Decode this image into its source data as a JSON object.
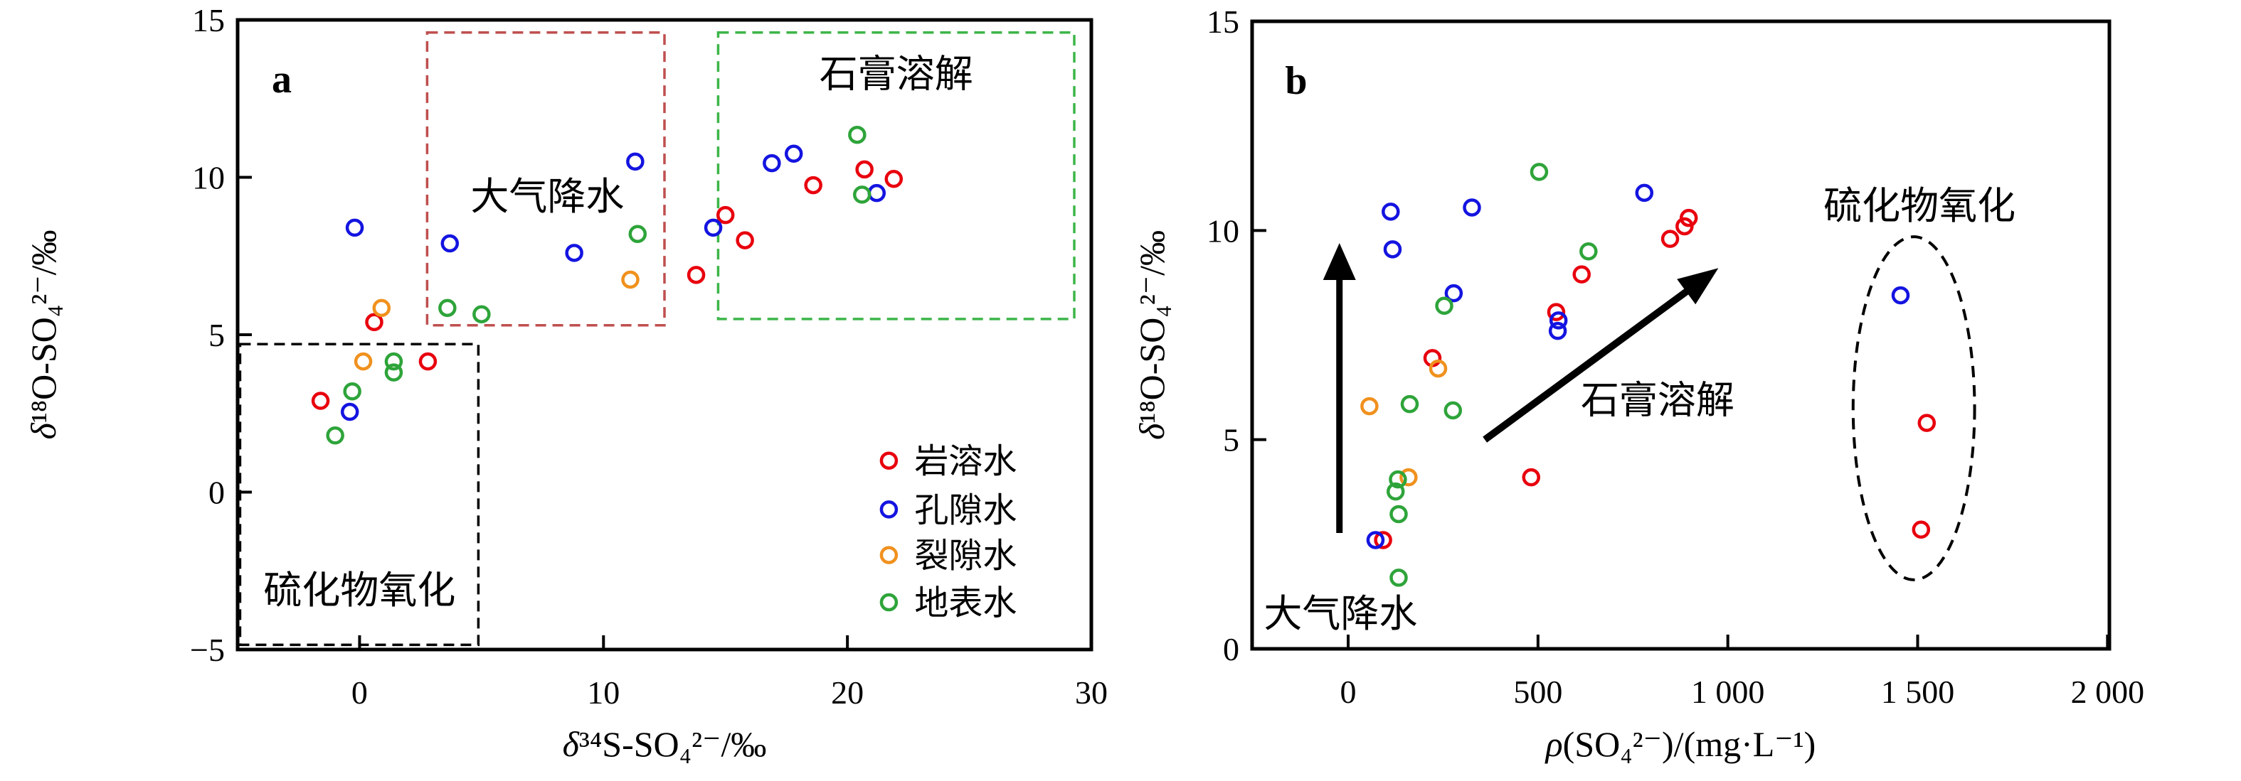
{
  "figure": {
    "background": "#ffffff"
  },
  "colors": {
    "karst_red": "#e8000d",
    "pore_blue": "#1414e0",
    "fissure_orange": "#f0911e",
    "surface_green": "#2ea43a",
    "precipitation_box": "#bf4f4f",
    "gypsum_box": "#3db549",
    "sulfide_box": "#000000"
  },
  "chart_data": [
    {
      "id": "a",
      "type": "scatter",
      "panel_label": "a",
      "xlabel": "δ³⁴S-SO₄²⁻/‰",
      "ylabel": "δ¹⁸O-SO₄²⁻/‰",
      "xlim": [
        -5,
        30
      ],
      "ylim": [
        -5,
        15
      ],
      "xticks": [
        "0",
        "10",
        "20",
        "30"
      ],
      "xtick_values": [
        0,
        10,
        20,
        30
      ],
      "yticks": [
        "−5",
        "0",
        "5",
        "10",
        "15"
      ],
      "ytick_values": [
        -5,
        0,
        5,
        10,
        15
      ],
      "grid": false,
      "legend_position": "inside-bottom-right",
      "series": [
        {
          "name": "岩溶水",
          "color": "#e8000d",
          "points": [
            [
              -1.6,
              2.9
            ],
            [
              0.6,
              5.4
            ],
            [
              2.8,
              4.15
            ],
            [
              13.8,
              6.9
            ],
            [
              15.0,
              8.8
            ],
            [
              15.8,
              8.0
            ],
            [
              18.6,
              9.75
            ],
            [
              20.7,
              10.25
            ],
            [
              21.9,
              9.95
            ]
          ]
        },
        {
          "name": "孔隙水",
          "color": "#1414e0",
          "points": [
            [
              -0.4,
              2.55
            ],
            [
              -0.2,
              8.4
            ],
            [
              3.7,
              7.9
            ],
            [
              8.8,
              7.6
            ],
            [
              11.3,
              10.5
            ],
            [
              14.5,
              8.4
            ],
            [
              16.9,
              10.45
            ],
            [
              17.8,
              10.75
            ],
            [
              21.2,
              9.5
            ]
          ]
        },
        {
          "name": "裂隙水",
          "color": "#f0911e",
          "points": [
            [
              0.15,
              4.15
            ],
            [
              0.9,
              5.85
            ],
            [
              11.1,
              6.75
            ]
          ]
        },
        {
          "name": "地表水",
          "color": "#2ea43a",
          "points": [
            [
              -1.0,
              1.8
            ],
            [
              -0.3,
              3.2
            ],
            [
              1.4,
              4.15
            ],
            [
              1.4,
              3.8
            ],
            [
              3.6,
              5.85
            ],
            [
              5.0,
              5.65
            ],
            [
              11.4,
              8.2
            ],
            [
              20.4,
              11.35
            ],
            [
              20.6,
              9.45
            ]
          ]
        }
      ],
      "regions": [
        {
          "name": "sulfide-oxidation-box",
          "label": "硫化物氧化",
          "color": "#000000",
          "x0": -4.9,
          "x1": 4.87,
          "y0": -4.85,
          "y1": 4.7,
          "label_x": 0.0,
          "label_y": -3.1
        },
        {
          "name": "precipitation-box",
          "label": "大气降水",
          "color": "#bf4f4f",
          "x0": 2.77,
          "x1": 12.5,
          "y0": 5.3,
          "y1": 14.6,
          "label_x": 7.7,
          "label_y": 9.4
        },
        {
          "name": "gypsum-dissolution-box",
          "label": "石膏溶解",
          "color": "#3db549",
          "x0": 14.7,
          "x1": 29.3,
          "y0": 5.5,
          "y1": 14.6,
          "label_x": 22.0,
          "label_y": 13.3
        }
      ],
      "legend": {
        "marker_x": 21.7,
        "rows_y": [
          1.0,
          -0.55,
          -2.0,
          -3.5
        ]
      }
    },
    {
      "id": "b",
      "type": "scatter",
      "panel_label": "b",
      "xlabel": "ρ(SO₄²⁻)/(mg·L⁻¹)",
      "ylabel": "δ¹⁸O-SO₄²⁻/‰",
      "xlim": [
        -253,
        2005
      ],
      "ylim": [
        0,
        15
      ],
      "xticks": [
        "0",
        "500",
        "1 000",
        "1 500",
        "2 000"
      ],
      "xtick_values": [
        0,
        500,
        1000,
        1500,
        2000
      ],
      "yticks": [
        "0",
        "5",
        "10",
        "15"
      ],
      "ytick_values": [
        0,
        5,
        10,
        15
      ],
      "grid": false,
      "legend_position": "none",
      "series": [
        {
          "name": "岩溶水",
          "color": "#e8000d",
          "points": [
            [
              92,
              2.6
            ],
            [
              222,
              6.95
            ],
            [
              482,
              4.1
            ],
            [
              548,
              8.05
            ],
            [
              615,
              8.95
            ],
            [
              848,
              9.8
            ],
            [
              886,
              10.1
            ],
            [
              897,
              10.3
            ],
            [
              1524,
              5.4
            ],
            [
              1509,
              2.85
            ]
          ]
        },
        {
          "name": "孔隙水",
          "color": "#1414e0",
          "points": [
            [
              72,
              2.6
            ],
            [
              112,
              10.45
            ],
            [
              117,
              9.55
            ],
            [
              278,
              8.5
            ],
            [
              326,
              10.55
            ],
            [
              552,
              7.6
            ],
            [
              554,
              7.85
            ],
            [
              780,
              10.9
            ],
            [
              1455,
              8.45
            ]
          ]
        },
        {
          "name": "裂隙水",
          "color": "#f0911e",
          "points": [
            [
              56,
              5.8
            ],
            [
              159,
              4.1
            ],
            [
              237,
              6.7
            ]
          ]
        },
        {
          "name": "地表水",
          "color": "#2ea43a",
          "points": [
            [
              131,
              4.05
            ],
            [
              125,
              3.76
            ],
            [
              133,
              3.22
            ],
            [
              133,
              1.7
            ],
            [
              162,
              5.85
            ],
            [
              253,
              8.2
            ],
            [
              276,
              5.7
            ],
            [
              503,
              11.4
            ],
            [
              633,
              9.5
            ]
          ]
        }
      ],
      "annotations": {
        "arrows": [
          {
            "name": "precipitation-arrow",
            "x0": -23,
            "y0": 2.77,
            "x1": -23,
            "y1": 9.7
          },
          {
            "name": "gypsum-arrow",
            "x0": 360,
            "y0": 5.0,
            "x1": 975,
            "y1": 9.1
          }
        ],
        "labels": [
          {
            "name": "precipitation-label",
            "text": "大气降水",
            "x": -20,
            "y": 0.85
          },
          {
            "name": "gypsum-label",
            "text": "石膏溶解",
            "x": 815,
            "y": 5.95
          },
          {
            "name": "sulfide-label",
            "text": "硫化物氧化",
            "x": 1505,
            "y": 10.6
          }
        ],
        "ellipse": {
          "name": "sulfide-oxidation-ellipse",
          "cx": 1490,
          "cy": 5.75,
          "rx": 160,
          "ry": 4.1
        }
      }
    }
  ]
}
